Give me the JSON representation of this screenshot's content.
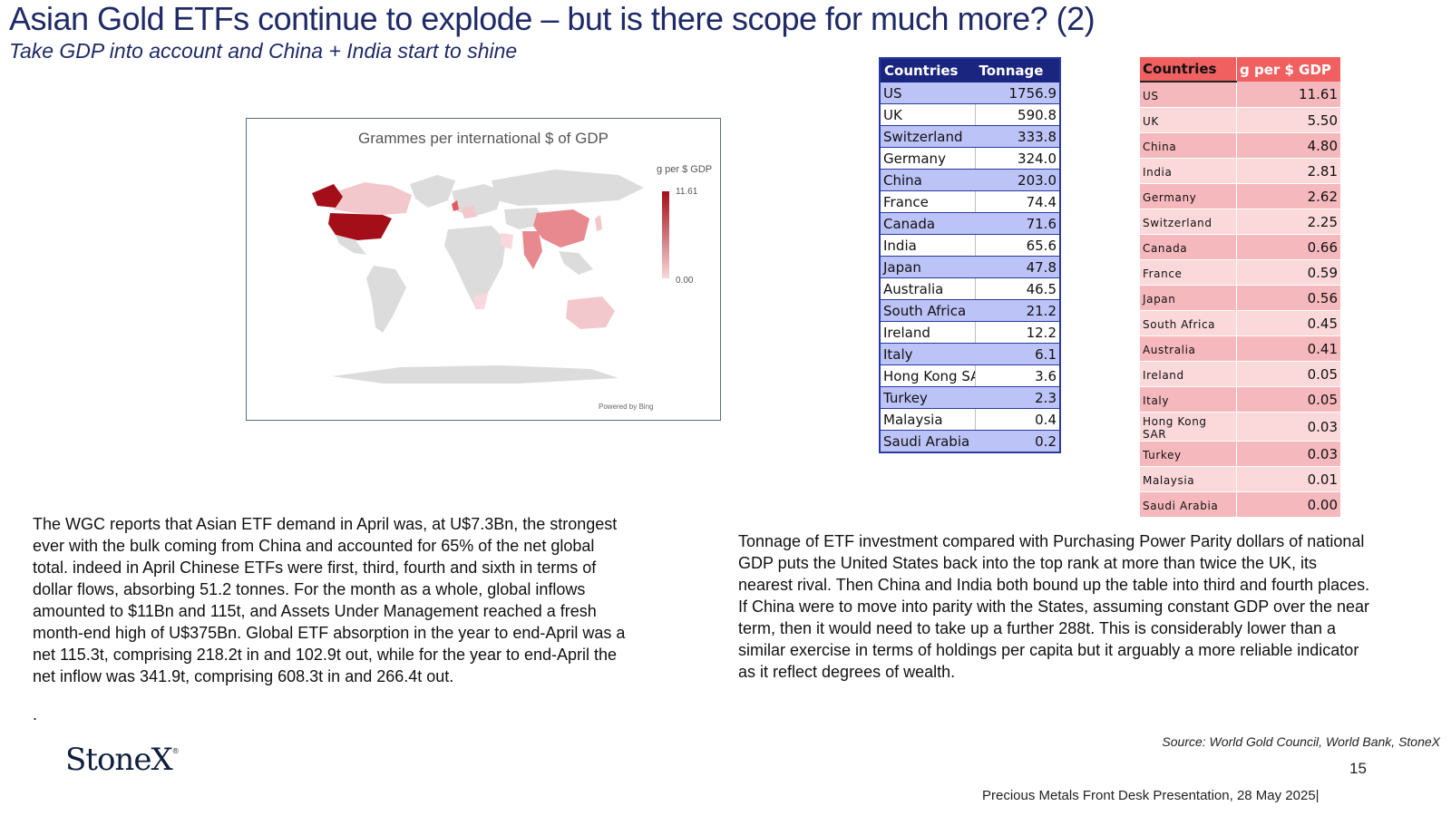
{
  "header": {
    "title": "Asian Gold ETFs continue to explode – but is there scope for much more? (2)",
    "subtitle": "Take GDP into account and China + India start to shine"
  },
  "map": {
    "title": "Grammes  per international $ of GDP",
    "legend_title": "g per $ GDP",
    "legend_max": "11.61",
    "legend_min": "0.00",
    "powered_by": "Powered by Bing",
    "colors": {
      "high": "#a30e18",
      "low": "#f8d8dc",
      "land": "#dcdcdc"
    }
  },
  "chart_data": [
    {
      "type": "table",
      "columns": [
        "Countries",
        "Tonnage"
      ],
      "rows": [
        [
          "US",
          "1756.9"
        ],
        [
          "UK",
          "590.8"
        ],
        [
          "Switzerland",
          "333.8"
        ],
        [
          "Germany",
          "324.0"
        ],
        [
          "China",
          "203.0"
        ],
        [
          "France",
          "74.4"
        ],
        [
          "Canada",
          "71.6"
        ],
        [
          "India",
          "65.6"
        ],
        [
          "Japan",
          "47.8"
        ],
        [
          "Australia",
          "46.5"
        ],
        [
          "South Africa",
          "21.2"
        ],
        [
          "Ireland",
          "12.2"
        ],
        [
          "Italy",
          "6.1"
        ],
        [
          "Hong Kong SA",
          "3.6"
        ],
        [
          "Turkey",
          "2.3"
        ],
        [
          "Malaysia",
          "0.4"
        ],
        [
          "Saudi Arabia",
          "0.2"
        ]
      ]
    },
    {
      "type": "table",
      "columns": [
        "Countries",
        "g per $ GDP"
      ],
      "rows": [
        [
          "US",
          "11.61"
        ],
        [
          "UK",
          "5.50"
        ],
        [
          "China",
          "4.80"
        ],
        [
          "India",
          "2.81"
        ],
        [
          "Germany",
          "2.62"
        ],
        [
          "Switzerland",
          "2.25"
        ],
        [
          "Canada",
          "0.66"
        ],
        [
          "France",
          "0.59"
        ],
        [
          "Japan",
          "0.56"
        ],
        [
          "South Africa",
          "0.45"
        ],
        [
          "Australia",
          "0.41"
        ],
        [
          "Ireland",
          "0.05"
        ],
        [
          "Italy",
          "0.05"
        ],
        [
          "Hong Kong SAR",
          "0.03"
        ],
        [
          "Turkey",
          "0.03"
        ],
        [
          "Malaysia",
          "0.01"
        ],
        [
          "Saudi Arabia",
          "0.00"
        ]
      ]
    }
  ],
  "body": {
    "left_text": "The WGC reports that Asian ETF demand in April was, at U$7.3Bn, the strongest ever with the bulk coming from China and accounted for 65% of the net global total.  indeed in April Chinese ETFs were first, third, fourth and sixth in terms of dollar flows, absorbing 51.2 tonnes.  For the month as a whole, global inflows amounted to $11Bn and 115t, and Assets Under Management reached a fresh month-end high of U$375Bn.   Global ETF absorption in the year to end-April was a net 115.3t, comprising 218.2t in and 102.9t out, while for the year to end-April the net inflow was 341.9t, comprising 608.3t in and 266.4t out.",
    "left_trailing": ".",
    "right_text": "Tonnage of ETF investment  compared with Purchasing Power Parity dollars of national GDP puts the United States back into the top rank at more than twice the UK, its nearest rival.  Then China and India both bound up the table into third and fourth places.  If China were to move into parity with the States, assuming constant GDP over the near term, then it would need to take up a further  288t.  This is considerably lower than a similar exercise in terms of  holdings per capita but it arguably a more reliable indicator as it reflect degrees of wealth."
  },
  "footer": {
    "logo": "StoneX",
    "logo_mark": "®",
    "source": "Source: World Gold Council, World Bank, StoneX",
    "page_number": "15",
    "presentation": "Precious Metals Front Desk Presentation, 28 May 2025|"
  }
}
